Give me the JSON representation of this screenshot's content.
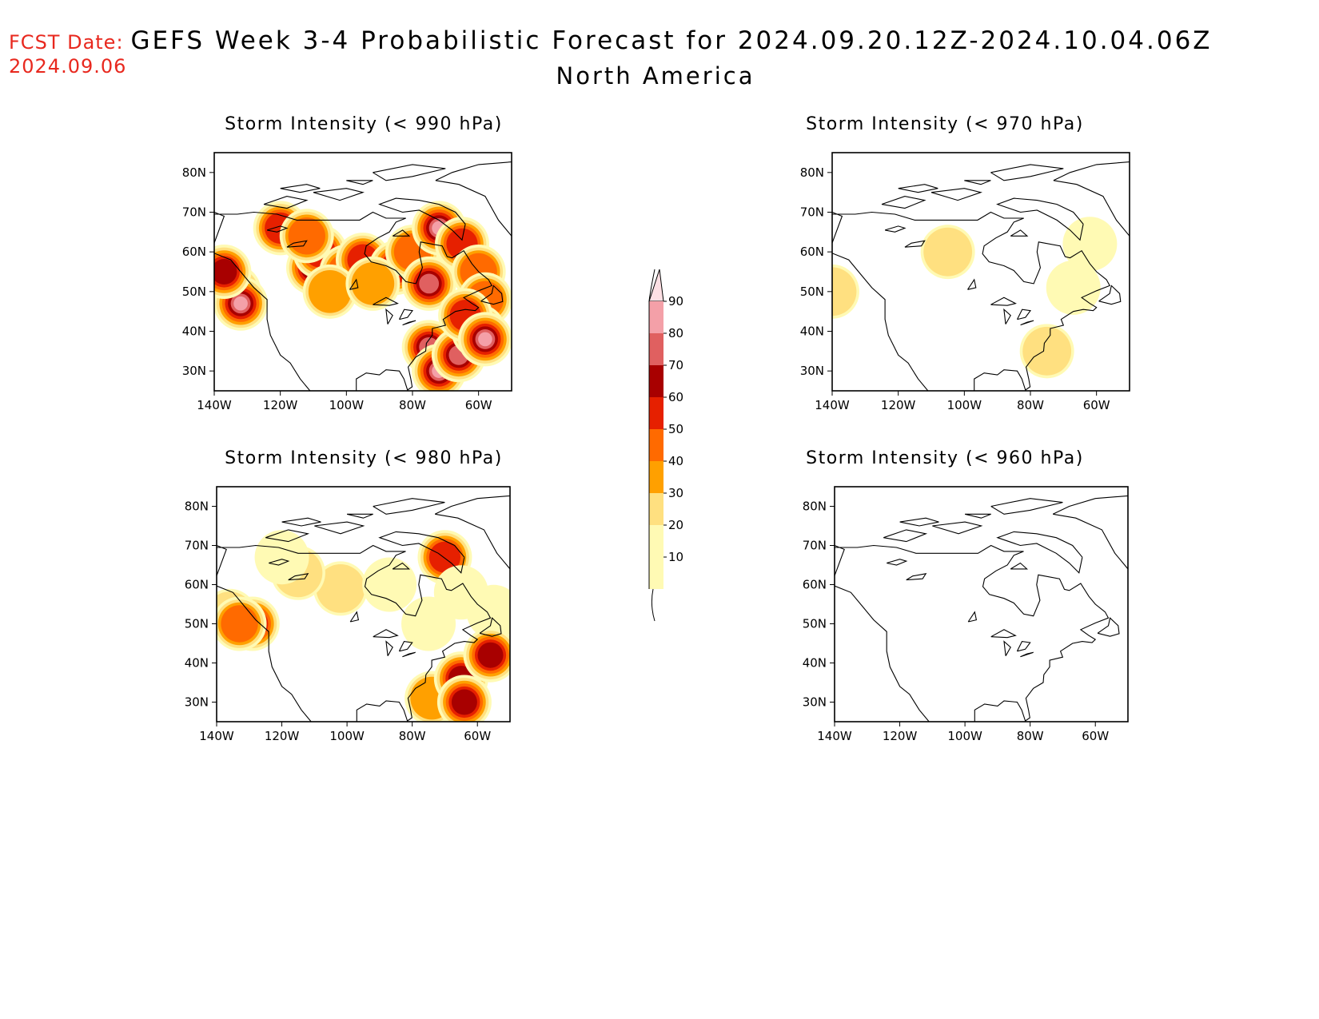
{
  "header": {
    "fcst_label": "FCST Date:",
    "fcst_date": "2024.09.06",
    "title": "GEFS Week 3-4 Probabilistic Forecast for 2024.09.20.12Z-2024.10.04.06Z",
    "subtitle": "North America"
  },
  "colors": {
    "accent_red": "#e8281e",
    "levels": [
      "#fffab4",
      "#ffe080",
      "#ffa000",
      "#ff6a00",
      "#e62000",
      "#a80000",
      "#e06060",
      "#f4a0a8",
      "#fde0e4"
    ]
  },
  "colorbar": {
    "ticks": [
      "10",
      "20",
      "30",
      "40",
      "50",
      "60",
      "70",
      "80",
      "90"
    ]
  },
  "axes": {
    "lat_labels": [
      "80N",
      "70N",
      "60N",
      "50N",
      "40N",
      "30N"
    ],
    "lon_labels": [
      "140W",
      "120W",
      "100W",
      "80W",
      "60W"
    ]
  },
  "panels": [
    {
      "id": "p990",
      "title": "Storm Intensity (< 990 hPa)",
      "blobs": [
        {
          "lon": -134,
          "lat": 50,
          "level": 4
        },
        {
          "lon": -132,
          "lat": 47,
          "level": 7
        },
        {
          "lon": -137,
          "lat": 55,
          "level": 5
        },
        {
          "lon": -120,
          "lat": 66,
          "level": 4
        },
        {
          "lon": -110,
          "lat": 56,
          "level": 5
        },
        {
          "lon": -108,
          "lat": 60,
          "level": 4
        },
        {
          "lon": -112,
          "lat": 64,
          "level": 3
        },
        {
          "lon": -100,
          "lat": 55,
          "level": 3
        },
        {
          "lon": -95,
          "lat": 58,
          "level": 4
        },
        {
          "lon": -85,
          "lat": 56,
          "level": 4
        },
        {
          "lon": -80,
          "lat": 60,
          "level": 3
        },
        {
          "lon": -75,
          "lat": 52,
          "level": 6
        },
        {
          "lon": -72,
          "lat": 66,
          "level": 7
        },
        {
          "lon": -65,
          "lat": 62,
          "level": 4
        },
        {
          "lon": -60,
          "lat": 55,
          "level": 3
        },
        {
          "lon": -58,
          "lat": 48,
          "level": 3
        },
        {
          "lon": -75,
          "lat": 36,
          "level": 6
        },
        {
          "lon": -72,
          "lat": 30,
          "level": 7
        },
        {
          "lon": -66,
          "lat": 34,
          "level": 6
        },
        {
          "lon": -60,
          "lat": 40,
          "level": 5
        },
        {
          "lon": -64,
          "lat": 44,
          "level": 4
        },
        {
          "lon": -105,
          "lat": 50,
          "level": 2
        },
        {
          "lon": -92,
          "lat": 52,
          "level": 2
        },
        {
          "lon": -58,
          "lat": 38,
          "level": 7
        }
      ]
    },
    {
      "id": "p970",
      "title": "Storm Intensity (< 970 hPa)",
      "blobs": [
        {
          "lon": -105,
          "lat": 60,
          "level": 1
        },
        {
          "lon": -140,
          "lat": 50,
          "level": 1
        },
        {
          "lon": -67,
          "lat": 51,
          "level": 0
        },
        {
          "lon": -62,
          "lat": 62,
          "level": 0
        },
        {
          "lon": -75,
          "lat": 35,
          "level": 1
        }
      ]
    },
    {
      "id": "p980",
      "title": "Storm Intensity (< 980 hPa)",
      "blobs": [
        {
          "lon": -136,
          "lat": 52,
          "level": 1
        },
        {
          "lon": -129,
          "lat": 50,
          "level": 4
        },
        {
          "lon": -133,
          "lat": 50,
          "level": 3
        },
        {
          "lon": -102,
          "lat": 59,
          "level": 1
        },
        {
          "lon": -115,
          "lat": 63,
          "level": 1
        },
        {
          "lon": -120,
          "lat": 67,
          "level": 0
        },
        {
          "lon": -70,
          "lat": 67,
          "level": 4
        },
        {
          "lon": -65,
          "lat": 58,
          "level": 0
        },
        {
          "lon": -55,
          "lat": 53,
          "level": 0
        },
        {
          "lon": -75,
          "lat": 50,
          "level": 0
        },
        {
          "lon": -74,
          "lat": 31,
          "level": 2
        },
        {
          "lon": -65,
          "lat": 36,
          "level": 5
        },
        {
          "lon": -64,
          "lat": 30,
          "level": 5
        },
        {
          "lon": -56,
          "lat": 42,
          "level": 5
        },
        {
          "lon": -87,
          "lat": 60,
          "level": 0
        }
      ]
    },
    {
      "id": "p960",
      "title": "Storm Intensity (< 960 hPa)",
      "blobs": []
    }
  ]
}
